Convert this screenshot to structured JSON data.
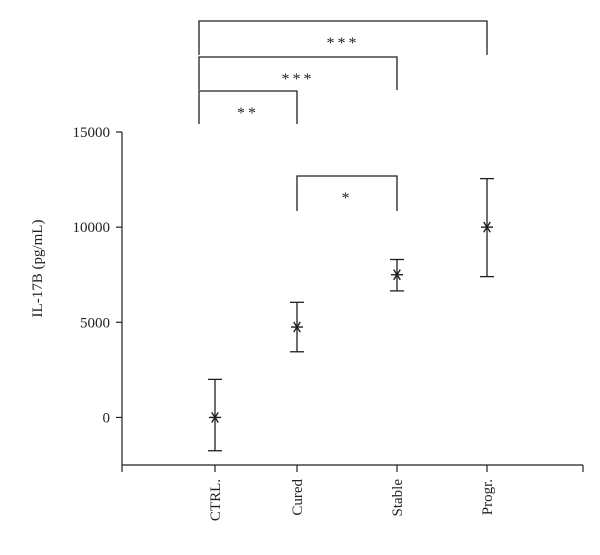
{
  "chart_data": {
    "type": "scatter",
    "title": "",
    "xlabel": "",
    "ylabel": "IL-17B (pg/mL)",
    "categories": [
      "CTRL.",
      "Cured",
      "Stable",
      "Progr."
    ],
    "series": [
      {
        "values": [
          0,
          4750,
          7500,
          10000
        ],
        "err_low": [
          -1750,
          3450,
          6650,
          7400
        ],
        "err_high": [
          2000,
          6050,
          8300,
          12550
        ]
      }
    ],
    "ylim": [
      -2500,
      15000
    ],
    "yticks": [
      0,
      5000,
      10000,
      15000
    ],
    "grid": false,
    "legend": "none",
    "significance": [
      {
        "from": "CTRL.",
        "to": "Cured",
        "label": "**"
      },
      {
        "from": "CTRL.",
        "to": "Stable",
        "label": "***"
      },
      {
        "from": "CTRL.",
        "to": "Progr.",
        "label": "***"
      },
      {
        "from": "Cured",
        "to": "Stable",
        "label": "*"
      }
    ]
  }
}
